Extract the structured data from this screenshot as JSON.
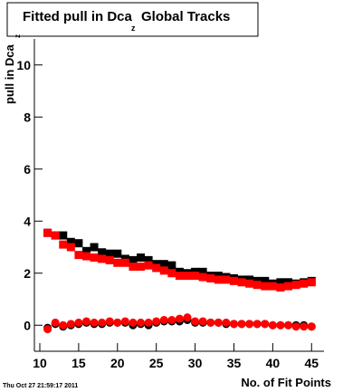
{
  "chart_data": {
    "type": "scatter",
    "title": "Fitted pull in Dca",
    "title_subscript": "z",
    "title_rest": "Global Tracks",
    "y_label": "pull in Dca",
    "y_label_subscript": "z",
    "x_label": "No. of Fit Points",
    "footer": "Thu Oct 27 21:59:17 2011",
    "x": [
      11,
      12,
      13,
      14,
      15,
      16,
      17,
      18,
      19,
      20,
      21,
      22,
      23,
      24,
      25,
      26,
      27,
      28,
      29,
      30,
      31,
      32,
      33,
      34,
      35,
      36,
      37,
      38,
      39,
      40,
      41,
      42,
      43,
      44,
      45
    ],
    "series": [
      {
        "color": "#000000",
        "marker": "square",
        "values": [
          3.55,
          3.45,
          3.45,
          3.2,
          3.15,
          2.85,
          3.0,
          2.8,
          2.75,
          2.75,
          2.55,
          2.5,
          2.6,
          2.5,
          2.35,
          2.35,
          2.3,
          2.05,
          2.0,
          2.05,
          2.05,
          1.9,
          1.9,
          1.85,
          1.8,
          1.75,
          1.75,
          1.7,
          1.7,
          1.6,
          1.65,
          1.65,
          1.6,
          1.65,
          1.7
        ]
      },
      {
        "color": "#ff0000",
        "marker": "square",
        "values": [
          3.55,
          3.45,
          3.1,
          3.0,
          2.7,
          2.65,
          2.6,
          2.55,
          2.5,
          2.4,
          2.4,
          2.25,
          2.25,
          2.3,
          2.2,
          2.1,
          2.0,
          1.9,
          1.9,
          1.9,
          1.85,
          1.8,
          1.75,
          1.75,
          1.7,
          1.65,
          1.6,
          1.55,
          1.5,
          1.5,
          1.45,
          1.5,
          1.55,
          1.6,
          1.65
        ]
      },
      {
        "color": "#000000",
        "marker": "circle",
        "values": [
          -0.1,
          0.05,
          -0.05,
          0,
          0.05,
          0.1,
          0.05,
          0.05,
          0.1,
          0.1,
          0.1,
          0,
          0.05,
          0,
          0.1,
          0.15,
          0.15,
          0.15,
          0.2,
          0.1,
          0.1,
          0.1,
          0.1,
          0.05,
          0.05,
          0.05,
          0.05,
          0.05,
          0.05,
          0,
          0,
          0,
          0,
          0,
          -0.05
        ]
      },
      {
        "color": "#ff0000",
        "marker": "circle",
        "values": [
          -0.15,
          0.1,
          0,
          0.05,
          0.1,
          0.15,
          0.1,
          0.1,
          0.15,
          0.1,
          0.15,
          0.1,
          0.1,
          0.1,
          0.15,
          0.2,
          0.2,
          0.25,
          0.3,
          0.15,
          0.15,
          0.1,
          0.1,
          0.1,
          0.05,
          0.05,
          0.05,
          0.05,
          0.05,
          0,
          0,
          0,
          -0.05,
          -0.05,
          -0.05
        ]
      }
    ],
    "xlim": [
      9.3,
      46.6
    ],
    "ylim": [
      -1,
      11
    ],
    "xticks": [
      10,
      15,
      20,
      25,
      30,
      35,
      40,
      45
    ],
    "yticks": [
      0,
      2,
      4,
      6,
      8,
      10
    ]
  }
}
